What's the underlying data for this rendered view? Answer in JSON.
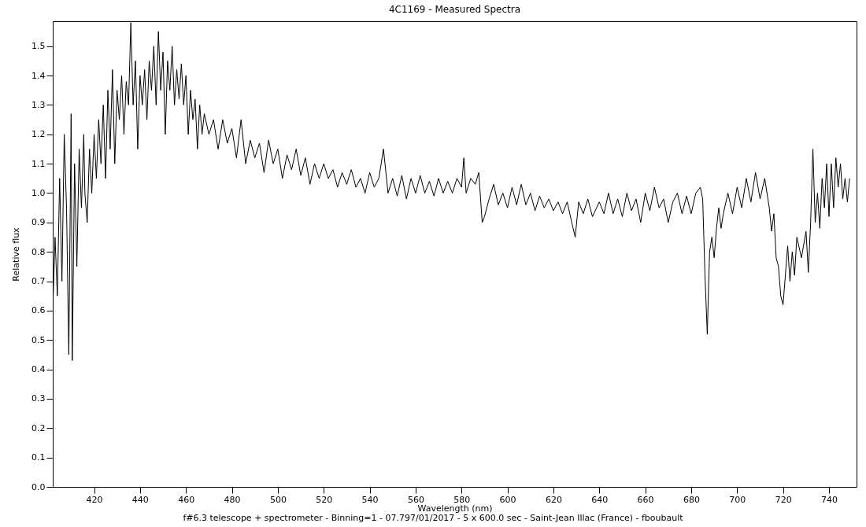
{
  "chart_data": {
    "type": "line",
    "title": "4C1169 - Measured Spectra",
    "xlabel": "Wavelength (nm)",
    "ylabel": "Relative flux",
    "annotations": [
      "f#6.3 telescope + spectrometer - Binning=1 - 07.797/01/2017 - 5 x 600.0 sec - Saint-Jean Illac (France) - fboubault"
    ],
    "xlim": [
      402,
      752
    ],
    "xticks": [
      420,
      440,
      460,
      480,
      500,
      520,
      540,
      560,
      580,
      600,
      620,
      640,
      660,
      680,
      700,
      720,
      740
    ],
    "ylim": [
      0,
      1.585
    ],
    "yticks": [
      {
        "value": 0,
        "label": "0.0"
      },
      0.1,
      0.2,
      0.3,
      0.4,
      0.5,
      0.6,
      0.7,
      0.8,
      0.9,
      {
        "value": 1,
        "label": "1.0"
      },
      1.1,
      1.2,
      1.3,
      1.4,
      1.5
    ],
    "grid": false,
    "marker": "none",
    "line_style": "solid",
    "x": [
      402,
      403,
      404,
      405,
      406,
      407,
      408,
      409,
      410,
      410.5,
      411.5,
      412.5,
      413.5,
      414.5,
      415.5,
      416,
      417,
      418,
      419,
      420,
      421,
      422,
      423,
      424,
      425,
      426,
      427,
      428,
      429,
      430,
      431,
      432,
      433,
      434,
      435,
      436,
      437,
      438,
      439,
      440,
      441,
      442,
      443,
      444,
      445,
      446,
      447,
      448,
      449,
      450,
      451,
      452,
      453,
      454,
      455,
      456,
      457,
      458,
      459,
      460,
      461,
      462,
      463,
      464,
      465,
      466,
      467,
      468,
      470,
      472,
      474,
      476,
      478,
      480,
      482,
      484,
      486,
      488,
      490,
      492,
      494,
      496,
      498,
      500,
      502,
      504,
      506,
      508,
      510,
      512,
      514,
      516,
      518,
      520,
      522,
      524,
      526,
      528,
      530,
      532,
      534,
      536,
      538,
      540,
      542,
      544,
      546,
      548,
      550,
      552,
      554,
      556,
      558,
      560,
      562,
      564,
      566,
      568,
      570,
      572,
      574,
      576,
      578,
      580,
      581,
      582,
      584,
      586,
      587.5,
      589,
      590,
      592,
      594,
      596,
      598,
      600,
      602,
      604,
      606,
      608,
      610,
      612,
      614,
      616,
      618,
      620,
      622,
      624,
      626,
      628,
      629.5,
      631,
      633,
      635,
      637,
      640,
      642,
      644,
      646,
      648,
      650,
      652,
      654,
      656,
      658,
      660,
      662,
      664,
      666,
      668,
      670,
      672,
      674,
      676,
      678,
      680,
      682,
      684,
      685,
      686,
      687,
      688,
      689,
      690,
      691,
      692,
      693,
      694,
      696,
      698,
      700,
      702,
      704,
      706,
      708,
      710,
      712,
      714,
      715,
      716,
      717,
      718,
      719,
      720,
      721,
      722,
      723,
      724,
      725,
      726,
      728,
      730,
      731,
      732,
      733,
      734,
      735,
      736,
      737,
      738,
      739,
      740,
      741,
      742,
      743,
      744,
      745,
      746,
      747,
      748,
      749
    ],
    "series": [
      {
        "color": "#000000",
        "values": [
          0.6,
          0.85,
          0.65,
          1.05,
          0.7,
          1.2,
          0.95,
          0.45,
          1.27,
          0.43,
          1.1,
          0.75,
          1.15,
          0.95,
          1.2,
          1.0,
          0.9,
          1.15,
          1.0,
          1.2,
          1.05,
          1.25,
          1.1,
          1.3,
          1.05,
          1.35,
          1.15,
          1.42,
          1.1,
          1.35,
          1.25,
          1.4,
          1.2,
          1.38,
          1.3,
          1.58,
          1.3,
          1.45,
          1.15,
          1.4,
          1.3,
          1.42,
          1.25,
          1.45,
          1.35,
          1.5,
          1.3,
          1.55,
          1.35,
          1.48,
          1.2,
          1.45,
          1.35,
          1.5,
          1.3,
          1.42,
          1.32,
          1.44,
          1.3,
          1.4,
          1.2,
          1.35,
          1.25,
          1.32,
          1.15,
          1.3,
          1.2,
          1.27,
          1.2,
          1.25,
          1.15,
          1.25,
          1.17,
          1.22,
          1.12,
          1.25,
          1.1,
          1.18,
          1.12,
          1.17,
          1.07,
          1.18,
          1.1,
          1.15,
          1.05,
          1.13,
          1.08,
          1.15,
          1.06,
          1.12,
          1.03,
          1.1,
          1.05,
          1.1,
          1.05,
          1.08,
          1.02,
          1.07,
          1.03,
          1.08,
          1.02,
          1.05,
          1.0,
          1.07,
          1.02,
          1.05,
          1.15,
          1.0,
          1.05,
          0.99,
          1.06,
          0.98,
          1.05,
          1.0,
          1.06,
          1.0,
          1.04,
          0.99,
          1.05,
          1.0,
          1.04,
          1.0,
          1.05,
          1.02,
          1.12,
          1.0,
          1.05,
          1.03,
          1.07,
          0.9,
          0.92,
          0.98,
          1.03,
          0.96,
          1.0,
          0.95,
          1.02,
          0.96,
          1.03,
          0.96,
          1.0,
          0.94,
          0.99,
          0.95,
          0.98,
          0.94,
          0.97,
          0.93,
          0.97,
          0.9,
          0.85,
          0.97,
          0.93,
          0.98,
          0.92,
          0.97,
          0.93,
          1.0,
          0.93,
          0.98,
          0.92,
          1.0,
          0.94,
          0.98,
          0.9,
          1.0,
          0.94,
          1.02,
          0.95,
          0.98,
          0.9,
          0.97,
          1.0,
          0.93,
          0.99,
          0.93,
          1.0,
          1.02,
          0.98,
          0.72,
          0.52,
          0.8,
          0.85,
          0.78,
          0.88,
          0.95,
          0.88,
          0.93,
          1.0,
          0.93,
          1.02,
          0.95,
          1.05,
          0.97,
          1.07,
          0.98,
          1.05,
          0.95,
          0.87,
          0.93,
          0.78,
          0.75,
          0.65,
          0.62,
          0.72,
          0.82,
          0.7,
          0.8,
          0.72,
          0.85,
          0.78,
          0.87,
          0.73,
          0.9,
          1.15,
          0.9,
          1.0,
          0.88,
          1.05,
          0.95,
          1.1,
          0.92,
          1.1,
          0.95,
          1.12,
          1.02,
          1.1,
          0.98,
          1.05,
          0.97,
          1.05
        ]
      }
    ]
  }
}
